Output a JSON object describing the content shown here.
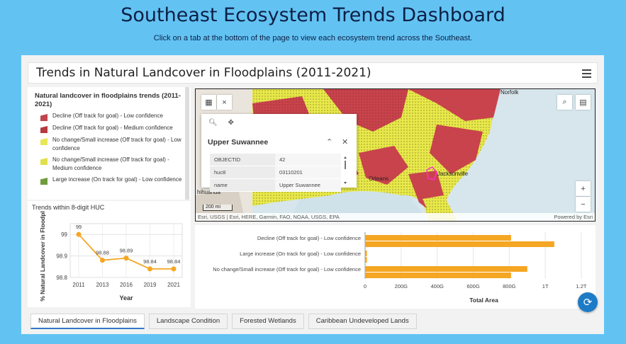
{
  "page": {
    "title": "Southeast Ecosystem Trends Dashboard",
    "subtitle": "Click on a tab at the bottom of the page to view each ecosystem trend across the Southeast."
  },
  "header": {
    "title": "Trends in Natural Landcover in Floodplains (2011-2021)",
    "menu_icon": "hamburger-menu-icon"
  },
  "legend": {
    "title": "Natural landcover in floodplains trends (2011-2021)",
    "items": [
      {
        "label": "Decline (Off track for goal) - Low confidence",
        "color": "#c0454b"
      },
      {
        "label": "Decline (Off track for goal) - Medium confidence",
        "color": "#b53a40"
      },
      {
        "label": "No change/Small increase (Off track for goal) - Low confidence",
        "color": "#e6e657"
      },
      {
        "label": "No change/Small increase (Off track for goal) - Medium confidence",
        "color": "#e0e04a"
      },
      {
        "label": "Large increase (On track for goal) - Low confidence",
        "color": "#6f9b3d"
      }
    ]
  },
  "line_chart": {
    "title": "Trends within 8-digit HUC",
    "xlabel": "Year",
    "ylabel": "% Natural Landcover in Floodpl",
    "color": "#f5a623"
  },
  "map": {
    "labels": {
      "norfolk": "Norfolk",
      "jacksonville": "Jacksonville",
      "orleans": "Orleans",
      "chihuahua": "hihuahua"
    },
    "scale": "200 mi",
    "credit": "Esri, USGS | Esri, HERE, Garmin, FAO, NOAA, USGS, EPA",
    "credit_right": "Powered by Esri",
    "zoom_in": "+",
    "zoom_out": "−"
  },
  "popup": {
    "title": "Upper Suwannee",
    "rows": [
      {
        "key": "OBJECTID",
        "value": "42"
      },
      {
        "key": "huc8",
        "value": "03110201"
      },
      {
        "key": "name",
        "value": "Upper Suwannee"
      }
    ]
  },
  "bar_chart": {
    "xlabel": "Total Area",
    "color": "#f5a623"
  },
  "chart_data": [
    {
      "type": "line",
      "title": "Trends within 8-digit HUC",
      "xlabel": "Year",
      "ylabel": "% Natural Landcover in Floodpl",
      "x": [
        "2011",
        "2013",
        "2016",
        "2019",
        "2021"
      ],
      "values": [
        99,
        98.88,
        98.89,
        98.84,
        98.84
      ],
      "data_labels": [
        "99",
        "98.88",
        "98.89",
        "98.84",
        "98.84"
      ],
      "ylim": [
        98.8,
        99.05
      ],
      "yticks": [
        "98.8",
        "98.9",
        "99"
      ],
      "grid": true
    },
    {
      "type": "bar",
      "orientation": "horizontal",
      "xlabel": "Total Area",
      "categories": [
        "Decline (Off track for goal) - Low confidence",
        "Large increase (On track for goal) - Low confidence",
        "No change/Small increase (Off track for goal) - Low confidence"
      ],
      "series": [
        {
          "values": [
            810,
            10,
            900
          ]
        },
        {
          "values": [
            1050,
            10,
            810
          ]
        }
      ],
      "xlim": [
        0,
        1200
      ],
      "xticks": [
        "0",
        "200G",
        "400G",
        "600G",
        "800G",
        "1T",
        "1.2T"
      ],
      "grid": true
    }
  ],
  "tabs": [
    {
      "label": "Natural Landcover in Floodplains",
      "active": true
    },
    {
      "label": "Landscape Condition",
      "active": false
    },
    {
      "label": "Forested Wetlands",
      "active": false
    },
    {
      "label": "Caribbean Undeveloped Lands",
      "active": false
    }
  ]
}
